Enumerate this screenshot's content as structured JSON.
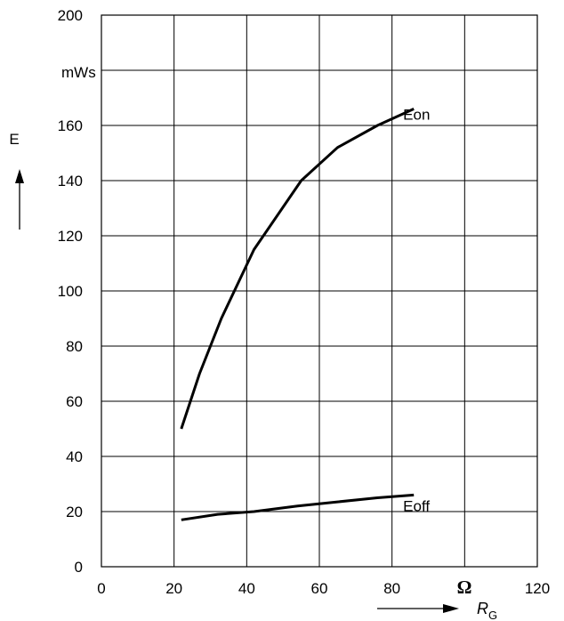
{
  "chart_data": {
    "type": "line",
    "title": "",
    "xlabel": "R",
    "xlabel_subscript": "G",
    "xunit": "Ω",
    "ylabel": "E",
    "yunit": "mWs",
    "xlim": [
      0,
      120
    ],
    "ylim": [
      0,
      200
    ],
    "x_ticks": [
      0,
      20,
      40,
      60,
      80,
      120
    ],
    "y_ticks": [
      0,
      20,
      40,
      60,
      80,
      100,
      120,
      140,
      160,
      200
    ],
    "grid": true,
    "series": [
      {
        "name": "Eon",
        "x": [
          22,
          27,
          33,
          42,
          55,
          65,
          76,
          86
        ],
        "y": [
          50,
          70,
          90,
          115,
          140,
          152,
          160,
          166
        ]
      },
      {
        "name": "Eoff",
        "x": [
          22,
          32,
          42,
          54,
          65,
          76,
          86
        ],
        "y": [
          17,
          19,
          20,
          22,
          23.5,
          25,
          26
        ]
      }
    ],
    "colors": {
      "line": "#000000",
      "grid": "#000000",
      "background": "#ffffff"
    }
  }
}
